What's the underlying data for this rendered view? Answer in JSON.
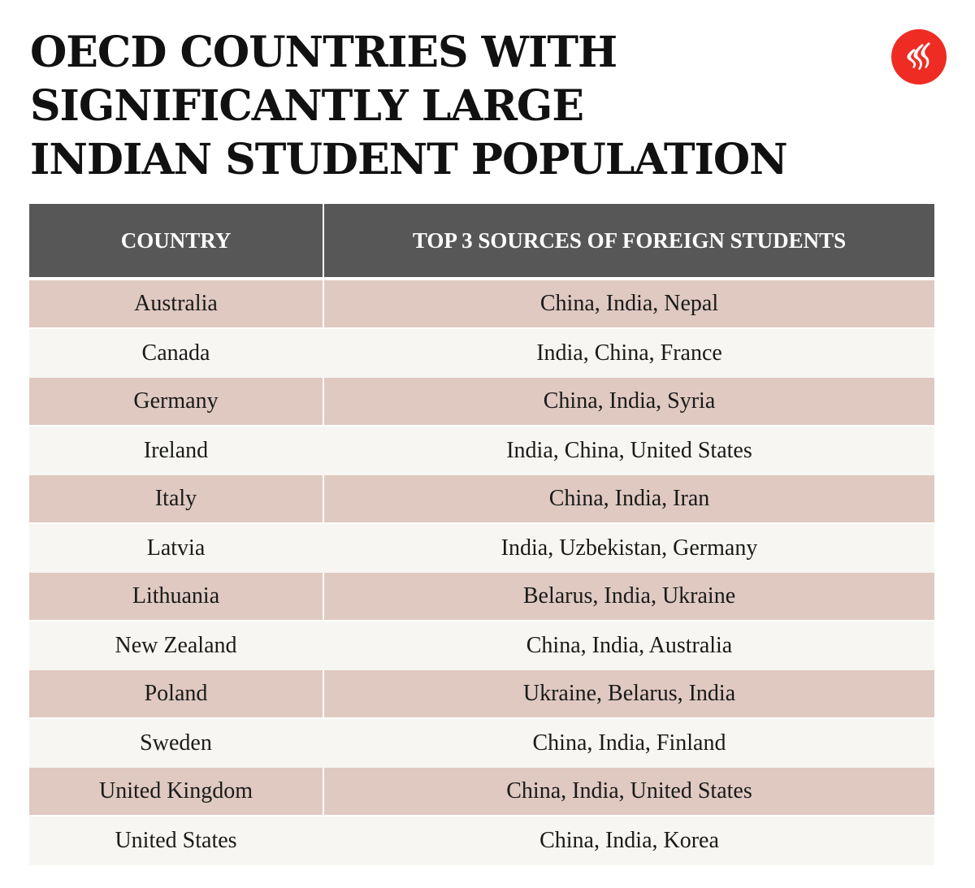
{
  "title": {
    "line1": "OECD COUNTRIES WITH",
    "line2": "SIGNIFICANTLY LARGE",
    "line3": "INDIAN STUDENT POPULATION"
  },
  "logo": {
    "icon": "indian-express-logo-icon",
    "color": "#ee2c24"
  },
  "colors": {
    "header_bg": "#575757",
    "row_alt": "#dfc9c0",
    "row_light": "#f7f6f2"
  },
  "chart_data": {
    "type": "table",
    "title": "OECD COUNTRIES WITH SIGNIFICANTLY LARGE INDIAN STUDENT POPULATION",
    "columns": [
      "COUNTRY",
      "TOP 3 SOURCES OF FOREIGN STUDENTS"
    ],
    "rows": [
      [
        "Australia",
        "China, India, Nepal"
      ],
      [
        "Canada",
        "India, China, France"
      ],
      [
        "Germany",
        "China, India, Syria"
      ],
      [
        "Ireland",
        "India, China, United States"
      ],
      [
        "Italy",
        "China, India, Iran"
      ],
      [
        "Latvia",
        "India, Uzbekistan, Germany"
      ],
      [
        "Lithuania",
        "Belarus, India, Ukraine"
      ],
      [
        "New Zealand",
        "China, India, Australia"
      ],
      [
        "Poland",
        "Ukraine, Belarus, India"
      ],
      [
        "Sweden",
        "China, India, Finland"
      ],
      [
        "United Kingdom",
        "China, India, United States"
      ],
      [
        "United States",
        "China, India, Korea"
      ]
    ]
  }
}
